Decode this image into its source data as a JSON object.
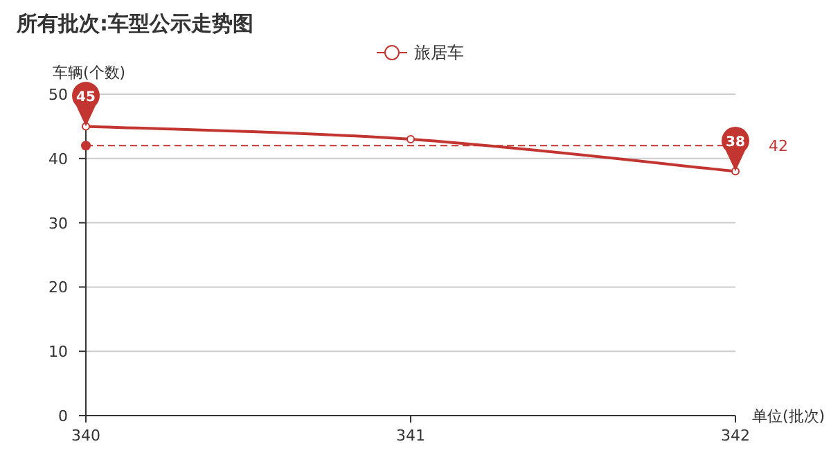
{
  "chart_data": {
    "type": "line",
    "title": "所有批次:车型公示走势图",
    "xlabel": "单位(批次)",
    "ylabel": "车辆(个数)",
    "x": [
      340,
      341,
      342
    ],
    "series": [
      {
        "name": "旅居车",
        "color": "#c23531",
        "values": [
          45,
          43,
          38
        ]
      }
    ],
    "xlim": [
      340,
      342
    ],
    "xticks": [
      340,
      341,
      342
    ],
    "ylim": [
      0,
      50
    ],
    "yticks": [
      0,
      10,
      20,
      30,
      40,
      50
    ],
    "grid": "y",
    "legend": "top",
    "marker": "circle",
    "line_style": "solid",
    "ref_lines": [
      {
        "axis": "y",
        "value": 42,
        "label": "42",
        "color": "#c23531",
        "line_style": "dashed"
      }
    ],
    "annotations": [
      {
        "text": "45",
        "x": 340,
        "y": 45
      },
      {
        "text": "38",
        "x": 342,
        "y": 38
      }
    ]
  }
}
